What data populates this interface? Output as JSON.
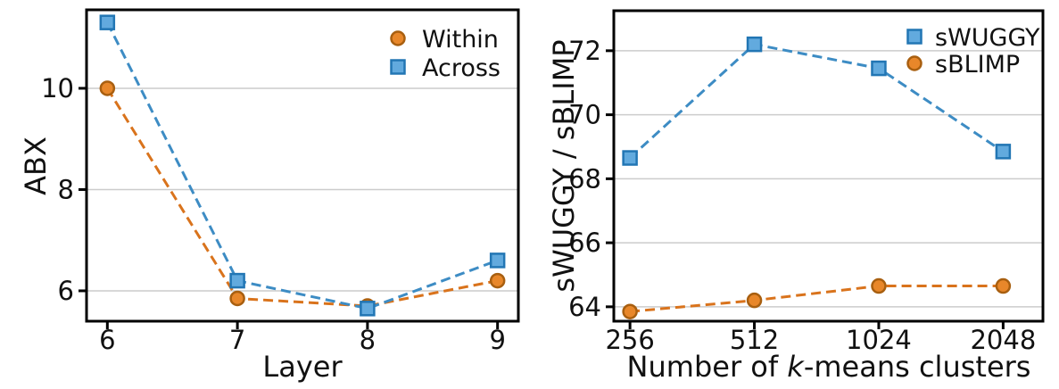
{
  "figure": {
    "background": "#ffffff",
    "grid_color": "#cccccc",
    "spine_color": "#000000",
    "text_color": "#111111"
  },
  "chart_data": [
    {
      "id": "abx-vs-layer",
      "type": "line",
      "title": "",
      "xlabel": {
        "pre": "Layer",
        "italic": "",
        "post": ""
      },
      "ylabel": "ABX",
      "x": [
        6,
        7,
        8,
        9
      ],
      "xtick_labels": [
        "6",
        "7",
        "8",
        "9"
      ],
      "yticks": [
        6,
        8,
        10
      ],
      "ytick_labels": [
        "6",
        "8",
        "10"
      ],
      "xlim": [
        5.84,
        9.16
      ],
      "ylim": [
        5.4,
        11.55
      ],
      "grid": "horizontal",
      "legend_position": "top-right-inside",
      "line_style": "dashed",
      "series": [
        {
          "name": "Within",
          "marker": "circle",
          "values": [
            10.0,
            5.85,
            5.7,
            6.2
          ],
          "line_color": "#d9731c",
          "marker_fill": "#e8872a",
          "marker_edge": "#a85f10"
        },
        {
          "name": "Across",
          "marker": "square",
          "values": [
            11.3,
            6.2,
            5.65,
            6.6
          ],
          "line_color": "#3d8cc4",
          "marker_fill": "#62aade",
          "marker_edge": "#2276b4"
        }
      ]
    },
    {
      "id": "swuggy-sblimp-vs-clusters",
      "type": "line",
      "title": "",
      "xlabel": {
        "pre": "Number of ",
        "italic": "k",
        "post": "-means clusters"
      },
      "ylabel": "sWUGGY / sBLIMP",
      "x": [
        0,
        1,
        2,
        3
      ],
      "xtick_labels": [
        "256",
        "512",
        "1024",
        "2048"
      ],
      "yticks": [
        64,
        66,
        68,
        70,
        72
      ],
      "ytick_labels": [
        "64",
        "66",
        "68",
        "70",
        "72"
      ],
      "xlim": [
        -0.13,
        3.32
      ],
      "ylim": [
        63.55,
        73.25
      ],
      "grid": "horizontal",
      "legend_position": "top-right-inside",
      "line_style": "dashed",
      "x_scale_note": "log2-spaced cluster counts rendered equidistant",
      "series": [
        {
          "name": "sWUGGY",
          "marker": "square",
          "values": [
            68.65,
            72.2,
            71.45,
            68.85
          ],
          "line_color": "#3d8cc4",
          "marker_fill": "#62aade",
          "marker_edge": "#2276b4"
        },
        {
          "name": "sBLIMP",
          "marker": "circle",
          "values": [
            63.85,
            64.2,
            64.65,
            64.65
          ],
          "line_color": "#d9731c",
          "marker_fill": "#e8872a",
          "marker_edge": "#a85f10"
        }
      ]
    }
  ]
}
